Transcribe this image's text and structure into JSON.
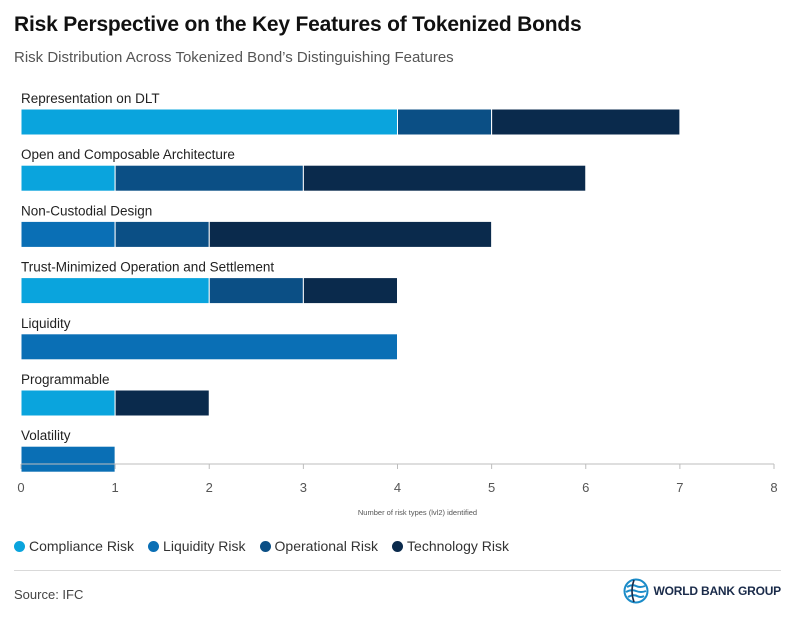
{
  "header": {
    "title": "Risk Perspective on the Key Features of Tokenized Bonds",
    "subtitle": "Risk Distribution Across Tokenized Bond’s Distinguishing Features"
  },
  "chart_data": {
    "type": "bar",
    "orientation": "horizontal",
    "stacked": true,
    "categories": [
      "Representation on DLT",
      "Open and Composable Architecture",
      "Non-Custodial Design",
      "Trust-Minimized Operation and Settlement",
      "Liquidity",
      "Programmable",
      "Volatility"
    ],
    "series": [
      {
        "name": "Compliance Risk",
        "color": "#0aa4dd",
        "values": [
          4,
          1,
          0,
          2,
          0,
          1,
          0
        ]
      },
      {
        "name": "Liquidity Risk",
        "color": "#0a6fb5",
        "values": [
          0,
          0,
          1,
          0,
          4,
          0,
          1
        ]
      },
      {
        "name": "Operational Risk",
        "color": "#0b4f85",
        "values": [
          1,
          2,
          1,
          1,
          0,
          0,
          0
        ]
      },
      {
        "name": "Technology Risk",
        "color": "#0a2a4c",
        "values": [
          2,
          3,
          3,
          1,
          0,
          1,
          0
        ]
      }
    ],
    "xlim": [
      0,
      8
    ],
    "xticks": [
      "0",
      "1",
      "2",
      "3",
      "4",
      "5",
      "6",
      "7",
      "8"
    ],
    "xlabel": "Number of risk types (lvl2) identified",
    "legend_position": "bottom-left",
    "grid": false
  },
  "footer": {
    "source": "Source: IFC",
    "logo_text": "WORLD BANK GROUP"
  }
}
